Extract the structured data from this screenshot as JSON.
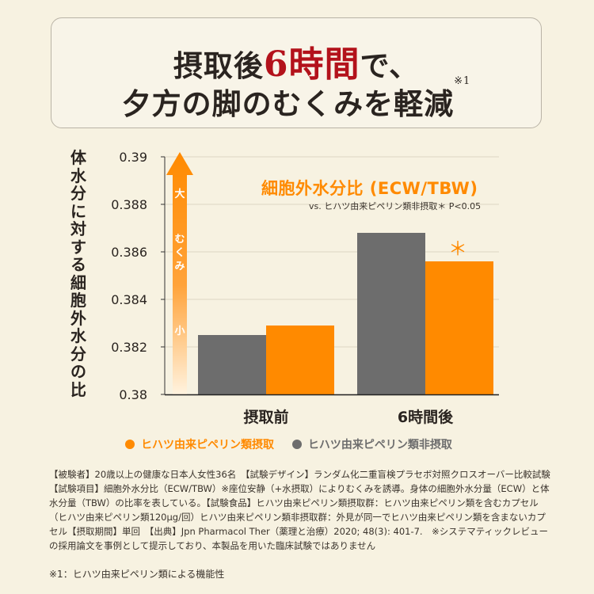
{
  "headline": {
    "line1_pre": "摂取後",
    "line1_accent": "6時間",
    "line1_post": "で、",
    "line2": "夕方の脚のむくみを軽減",
    "note_mark": "※1"
  },
  "colors": {
    "intake": "#ff8a00",
    "non_intake": "#6d6d6d",
    "accent_red": "#b3121b",
    "background": "#f7f2e1"
  },
  "chart_data": {
    "type": "bar",
    "title": "細胞外水分比 (ECW/TBW)",
    "subtitle": "vs. ヒハツ由来ピペリン類非摂取＊ P<0.05",
    "ylabel": "体水分に対する細胞外水分の比",
    "ylim": [
      0.38,
      0.39
    ],
    "yticks": [
      "0.39",
      "0.388",
      "0.386",
      "0.384",
      "0.382",
      "0.38"
    ],
    "categories": [
      "摂取前",
      "6時間後"
    ],
    "series": [
      {
        "name": "ヒハツ由来ピペリン類非摂取",
        "color": "#6d6d6d",
        "values": [
          0.3825,
          0.3868
        ]
      },
      {
        "name": "ヒハツ由来ピペリン類摂取",
        "color": "#ff8a00",
        "values": [
          0.3829,
          0.3856
        ]
      }
    ],
    "significance_marker": "＊",
    "arrow_labels": {
      "top": "大",
      "middle": "むくみ",
      "bottom": "小"
    }
  },
  "legend": [
    {
      "label": "ヒハツ由来ピペリン類摂取",
      "color": "#ff8a00"
    },
    {
      "label": "ヒハツ由来ピペリン類非摂取",
      "color": "#6d6d6d"
    }
  ],
  "footnote": "【被験者】20歳以上の健康な日本人女性36名　【試験デザイン】ランダム化二重盲検プラセボ対照クロスオーバー比較試験　【試験項目】細胞外水分比（ECW/TBW）※座位安静（+水摂取）によりむくみを誘導。身体の細胞外水分量（ECW）と体水分量（TBW）の比率を表している。【試験食品】ヒハツ由来ピペリン類摂取群：ヒハツ由来ピペリン類を含むカプセル（ヒハツ由来ピペリン類120μg/回）ヒハツ由来ピペリン類非摂取群：外見が同一でヒハツ由来ピペリン類を含まないカプセル【摂取期間】単回　【出典】Jpn Pharmacol Ther（薬理と治療）2020; 48(3): 401-7.　※システマティックレビューの採用論文を事例として提示しており、本製品を用いた臨床試験ではありません",
  "footnote2": "※1：ヒハツ由来ピペリン類による機能性"
}
